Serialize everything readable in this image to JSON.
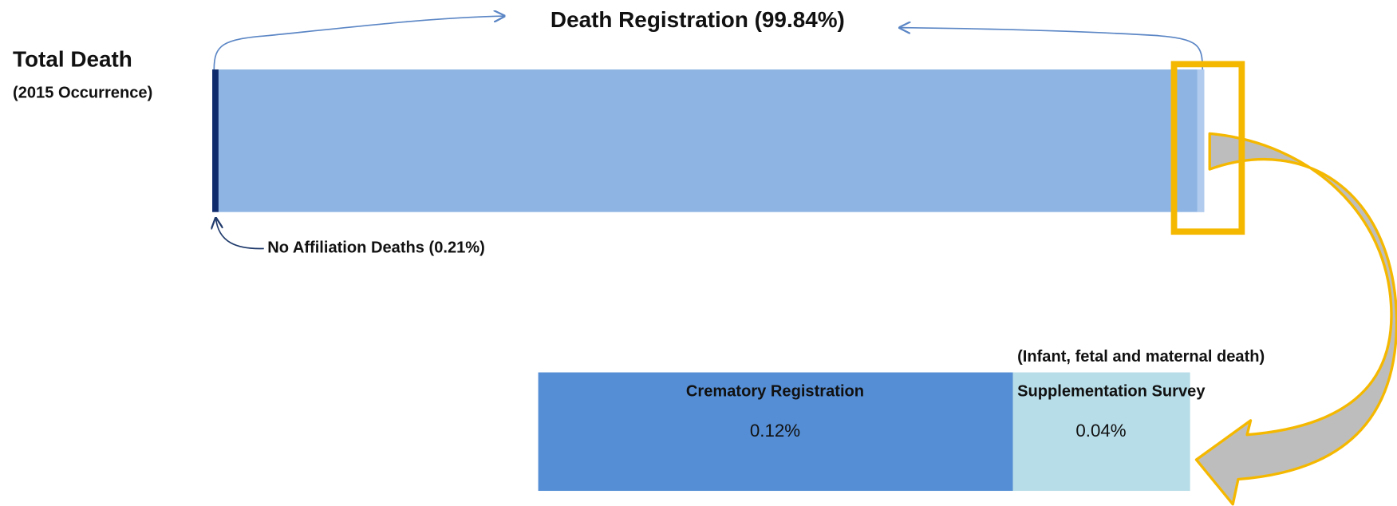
{
  "header": {
    "title": "Death Registration (99.84%)"
  },
  "total": {
    "label": "Total Death",
    "sublabel": "(2015 Occurrence)"
  },
  "no_affiliation": {
    "label": "No Affiliation  Deaths (0.21%)"
  },
  "breakdown": {
    "note": "(Infant, fetal and maternal death)",
    "crematory": {
      "label": "Crematory Registration",
      "value": "0.12%"
    },
    "supplementation": {
      "label": "Supplementation Survey",
      "value": "0.04%"
    }
  }
}
